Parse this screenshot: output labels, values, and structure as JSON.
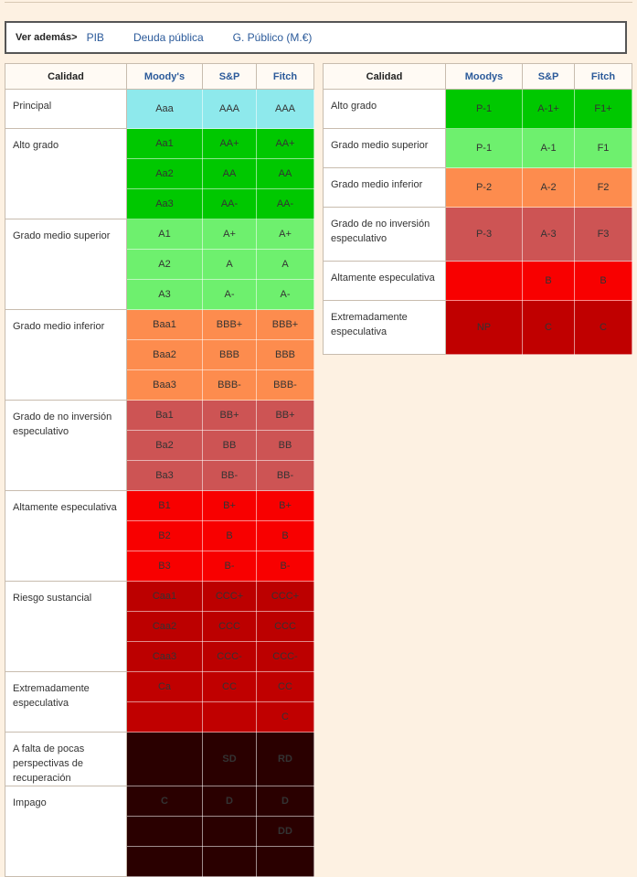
{
  "see_also": {
    "label": "Ver además>",
    "links": [
      "PIB",
      "Deuda pública",
      "G. Público (M.€)"
    ]
  },
  "long_term": {
    "headers": {
      "quality": "Calidad",
      "moodys": "Moody's",
      "sp": "S&P",
      "fitch": "Fitch"
    },
    "groups": [
      {
        "quality": "Principal",
        "color": "#8ee9ec",
        "text_light": false,
        "rows": [
          [
            "Aaa",
            "AAA",
            "AAA"
          ]
        ]
      },
      {
        "quality": "Alto grado",
        "color": "#00c800",
        "text_light": false,
        "rows": [
          [
            "Aa1",
            "AA+",
            "AA+"
          ],
          [
            "Aa2",
            "AA",
            "AA"
          ],
          [
            "Aa3",
            "AA-",
            "AA-"
          ]
        ]
      },
      {
        "quality": "Grado medio superior",
        "color": "#6ef06e",
        "text_light": false,
        "rows": [
          [
            "A1",
            "A+",
            "A+"
          ],
          [
            "A2",
            "A",
            "A"
          ],
          [
            "A3",
            "A-",
            "A-"
          ]
        ]
      },
      {
        "quality": "Grado medio inferior",
        "color": "#fd8c4e",
        "text_light": false,
        "rows": [
          [
            "Baa1",
            "BBB+",
            "BBB+"
          ],
          [
            "Baa2",
            "BBB",
            "BBB"
          ],
          [
            "Baa3",
            "BBB-",
            "BBB-"
          ]
        ]
      },
      {
        "quality": "Grado de no inversión especulativo",
        "color": "#cd5454",
        "text_light": false,
        "rows": [
          [
            "Ba1",
            "BB+",
            "BB+"
          ],
          [
            "Ba2",
            "BB",
            "BB"
          ],
          [
            "Ba3",
            "BB-",
            "BB-"
          ]
        ]
      },
      {
        "quality": "Altamente especulativa",
        "color": "#f80000",
        "text_light": false,
        "rows": [
          [
            "B1",
            "B+",
            "B+"
          ],
          [
            "B2",
            "B",
            "B"
          ],
          [
            "B3",
            "B-",
            "B-"
          ]
        ]
      },
      {
        "quality": "Riesgo sustancial",
        "color": "#bc0000",
        "text_light": false,
        "rows": [
          [
            "Caa1",
            "CCC+",
            "CCC+"
          ],
          [
            "Caa2",
            "CCC",
            "CCC"
          ],
          [
            "Caa3",
            "CCC-",
            "CCC-"
          ]
        ]
      },
      {
        "quality": "Extremadamente especulativa",
        "color": "#c00000",
        "text_light": false,
        "rows": [
          [
            "Ca",
            "CC",
            "CC"
          ],
          [
            "",
            "",
            "C"
          ]
        ]
      },
      {
        "quality": "A falta de pocas perspectivas de recuperación",
        "color": "#2a0000",
        "text_light": true,
        "rows": [
          [
            "",
            "SD",
            "RD"
          ]
        ]
      },
      {
        "quality": "Impago",
        "color": "#2a0000",
        "text_light": true,
        "rows": [
          [
            "C",
            "D",
            "D"
          ],
          [
            "",
            "",
            "DD"
          ],
          [
            "",
            "",
            ""
          ]
        ]
      }
    ]
  },
  "short_term": {
    "headers": {
      "quality": "Calidad",
      "moodys": "Moodys",
      "sp": "S&P",
      "fitch": "Fitch"
    },
    "groups": [
      {
        "quality": "Alto grado",
        "color": "#00c800",
        "text_light": false,
        "rows": [
          [
            "P-1",
            "A-1+",
            "F1+"
          ]
        ]
      },
      {
        "quality": "Grado medio superior",
        "color": "#6ef06e",
        "text_light": false,
        "rows": [
          [
            "P-1",
            "A-1",
            "F1"
          ]
        ]
      },
      {
        "quality": "Grado medio inferior",
        "color": "#fd8c4e",
        "text_light": false,
        "rows": [
          [
            "P-2",
            "A-2",
            "F2"
          ]
        ]
      },
      {
        "quality": "Grado de no inversión especulativo",
        "color": "#cd5454",
        "text_light": false,
        "tall": true,
        "rows": [
          [
            "P-3",
            "A-3",
            "F3"
          ]
        ]
      },
      {
        "quality": "Altamente especulativa",
        "color": "#f80000",
        "text_light": false,
        "rows": [
          [
            "",
            "B",
            "B"
          ]
        ]
      },
      {
        "quality": "Extremadamente especulativa",
        "color": "#c00000",
        "text_light": false,
        "tall": true,
        "rows": [
          [
            "NP",
            "C",
            "C"
          ]
        ]
      }
    ]
  }
}
